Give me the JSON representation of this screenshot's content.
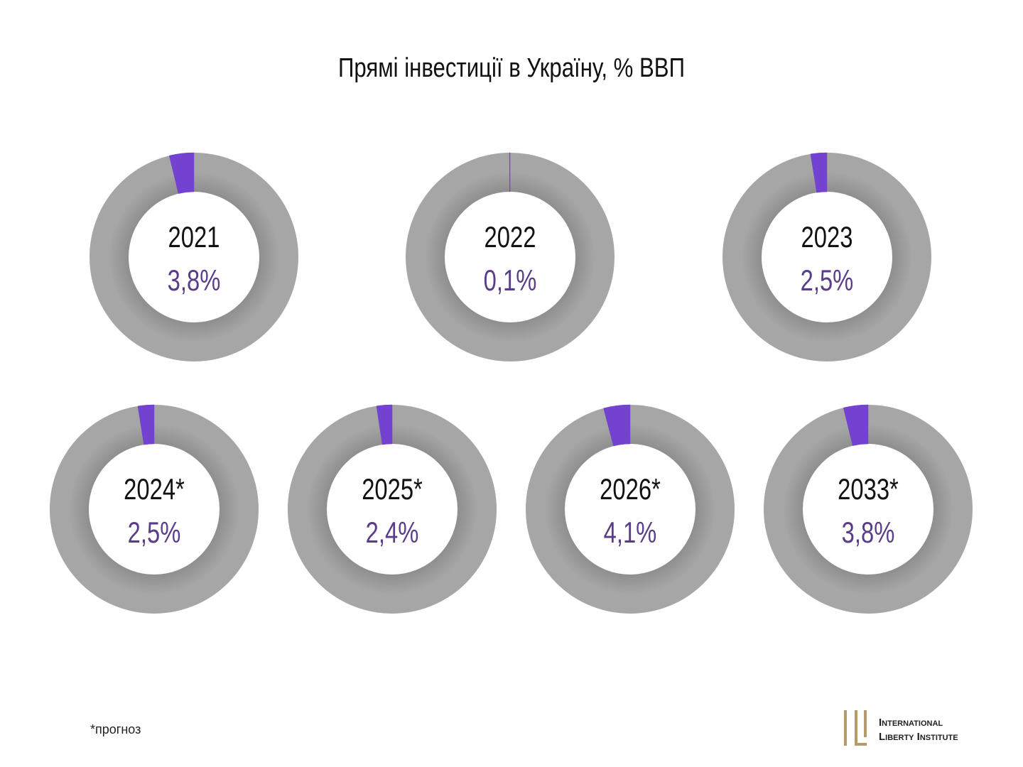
{
  "title": "Прямі інвестиції в Україну, % ВВП",
  "footnote": "*прогноз",
  "logo": {
    "lines": [
      "International",
      "Liberty Institute"
    ]
  },
  "chart_data": [
    {
      "type": "donut",
      "title": "2021",
      "values": [
        3.8
      ],
      "value_labels": [
        "3,8%"
      ],
      "color": "#7442d0"
    },
    {
      "type": "donut",
      "title": "2022",
      "values": [
        0.1
      ],
      "value_labels": [
        "0,1%"
      ],
      "color": "#7442d0"
    },
    {
      "type": "donut",
      "title": "2023",
      "values": [
        2.5
      ],
      "value_labels": [
        "2,5%"
      ],
      "color": "#7442d0"
    },
    {
      "type": "donut",
      "title": "2024*",
      "values": [
        2.5
      ],
      "value_labels": [
        "2,5%"
      ],
      "color": "#7442d0"
    },
    {
      "type": "donut",
      "title": "2025*",
      "values": [
        2.4
      ],
      "value_labels": [
        "2,4%"
      ],
      "color": "#7442d0"
    },
    {
      "type": "donut",
      "title": "2026*",
      "values": [
        4.1
      ],
      "value_labels": [
        "4,1%"
      ],
      "color": "#7442d0"
    },
    {
      "type": "donut",
      "title": "2033*",
      "values": [
        3.8
      ],
      "value_labels": [
        "3,8%"
      ],
      "color": "#7442d0"
    }
  ]
}
